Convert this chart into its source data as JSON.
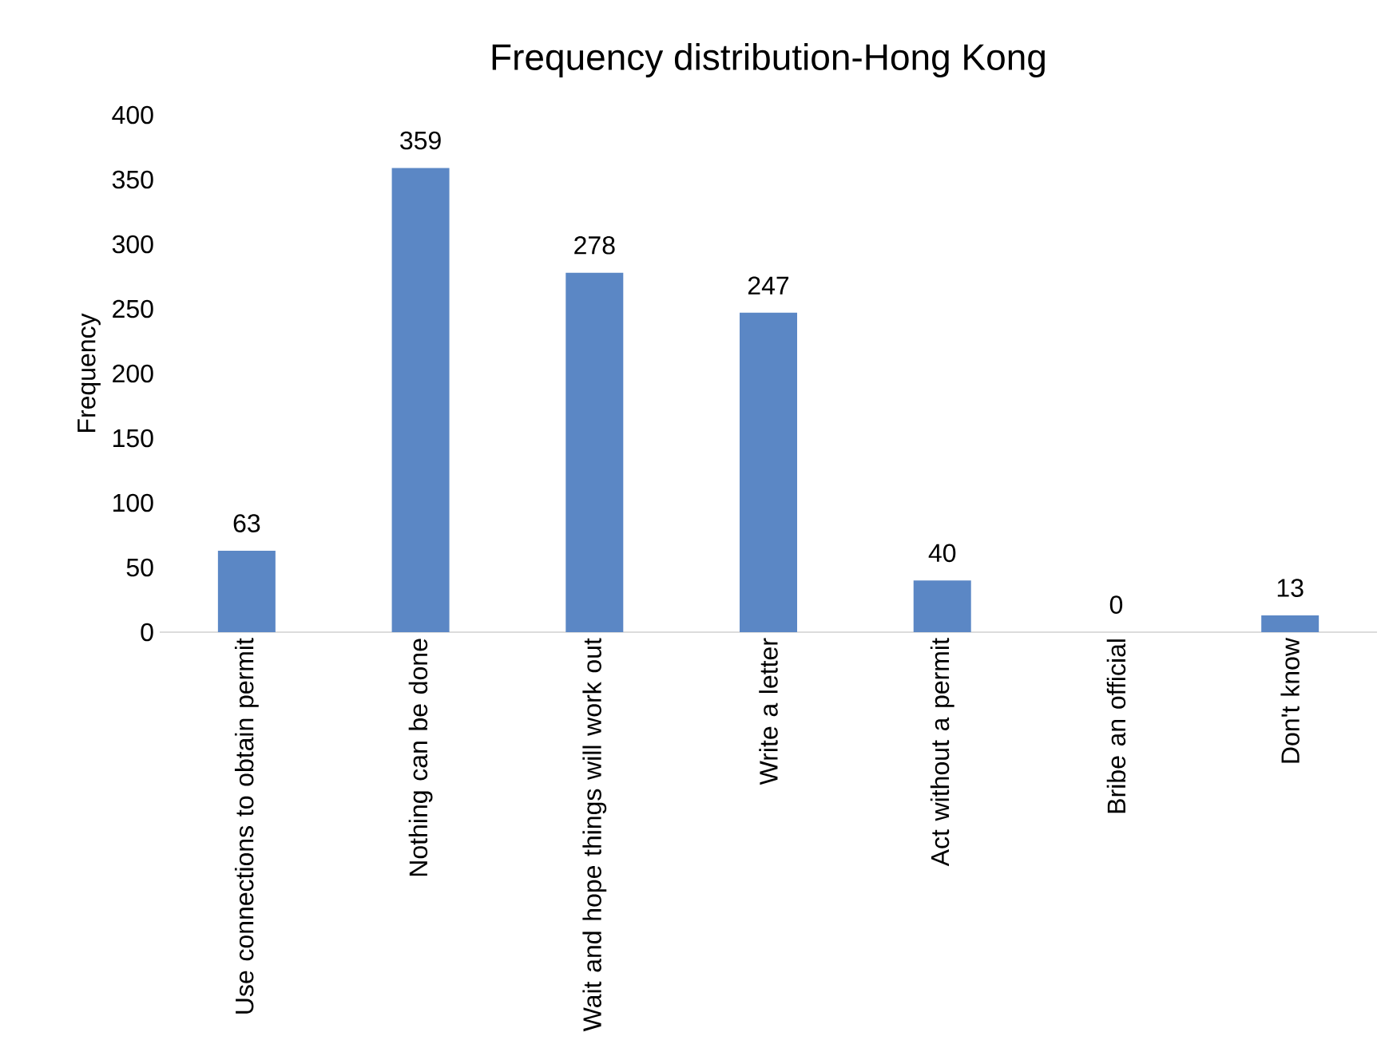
{
  "chart_data": {
    "type": "bar",
    "title": "Frequency distribution-Hong Kong",
    "ylabel": "Frequency",
    "categories": [
      "Use connections to obtain permit",
      "Nothing can be done",
      "Wait and hope things will work out",
      "Write a letter",
      "Act without a permit",
      "Bribe an official",
      "Don't know"
    ],
    "values": [
      63,
      359,
      278,
      247,
      40,
      0,
      13
    ],
    "color": "#5b87c5",
    "ylim": [
      0,
      400
    ],
    "yticks": [
      0,
      50,
      100,
      150,
      200,
      250,
      300,
      350,
      400
    ],
    "data_labels": true,
    "grid": false
  }
}
